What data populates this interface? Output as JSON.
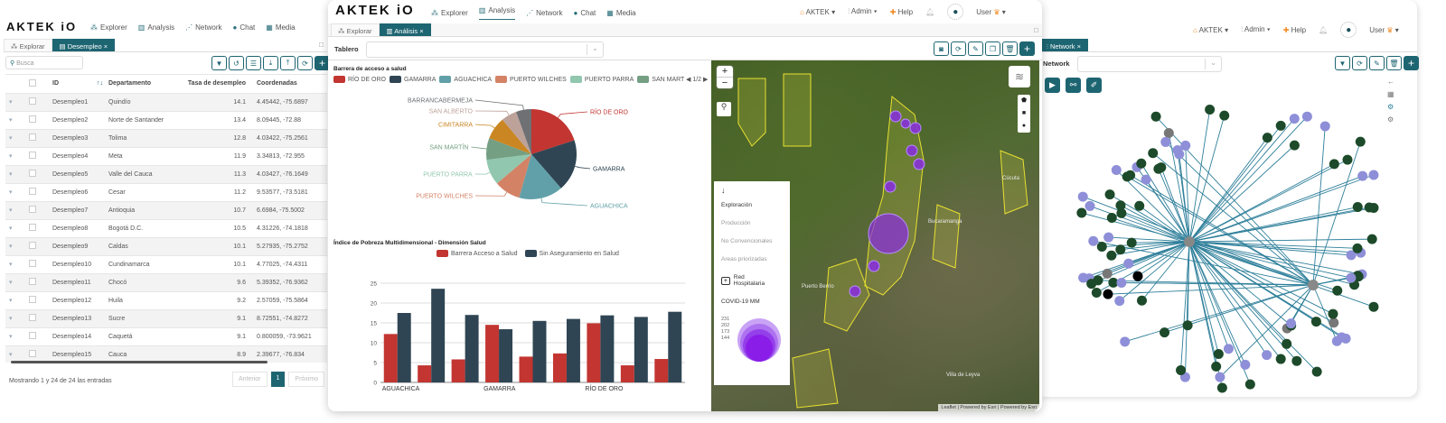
{
  "brand": {
    "logo": "AKTEK iO"
  },
  "nav": [
    "Explorer",
    "Analysis",
    "Network",
    "Chat",
    "Media"
  ],
  "top_menu": {
    "org": "AKTEK",
    "admin": "Admin",
    "help": "Help",
    "user": "User"
  },
  "left": {
    "tabs": [
      "Explorar",
      "Desempleo"
    ],
    "search_placeholder": "Busca",
    "columns": [
      "ID",
      "Departamento",
      "Tasa de desempleo",
      "Coordenadas"
    ],
    "rows": [
      [
        "Desempleo1",
        "Quindío",
        "14.1",
        "4.45442, -75.6897"
      ],
      [
        "Desempleo2",
        "Norte de Santander",
        "13.4",
        "8.09445, -72.88"
      ],
      [
        "Desempleo3",
        "Tolima",
        "12.8",
        "4.03422, -75.2561"
      ],
      [
        "Desempleo4",
        "Meta",
        "11.9",
        "3.34813, -72.955"
      ],
      [
        "Desempleo5",
        "Valle del Cauca",
        "11.3",
        "4.03427, -76.1649"
      ],
      [
        "Desempleo6",
        "Cesar",
        "11.2",
        "9.53577, -73.5181"
      ],
      [
        "Desempleo7",
        "Antioquia",
        "10.7",
        "6.6984, -75.5002"
      ],
      [
        "Desempleo8",
        "Bogotá D.C.",
        "10.5",
        "4.31226, -74.1818"
      ],
      [
        "Desempleo9",
        "Caldas",
        "10.1",
        "5.27935, -75.2752"
      ],
      [
        "Desempleo10",
        "Cundinamarca",
        "10.1",
        "4.77025, -74.4311"
      ],
      [
        "Desempleo11",
        "Chocó",
        "9.6",
        "5.39352, -76.9362"
      ],
      [
        "Desempleo12",
        "Huila",
        "9.2",
        "2.57059, -75.5864"
      ],
      [
        "Desempleo13",
        "Sucre",
        "9.1",
        "8.72551, -74.8272"
      ],
      [
        "Desempleo14",
        "Caquetá",
        "9.1",
        "0.800059, -73.9621"
      ],
      [
        "Desempleo15",
        "Cauca",
        "8.9",
        "2.39677, -76.834"
      ]
    ],
    "footer": "Mostrando 1 y 24 de 24 las entradas",
    "pager": {
      "prev": "Anterior",
      "page": "1",
      "next": "Próximo"
    }
  },
  "middle": {
    "tabs": [
      "Explorar",
      "Análisis"
    ],
    "dashboard_label": "Tablero",
    "map_legend": {
      "items": [
        "Exploración",
        "Producción",
        "No Convencionales",
        "Areas priorizadas",
        "Red Hospitalaria",
        "COVID-19 MM"
      ],
      "scale": [
        "231",
        "202",
        "173",
        "144"
      ]
    },
    "map_attribution": "Leaflet | Powered by Esri | Powered by Esri"
  },
  "right": {
    "tab": "Network",
    "network_label": "Network"
  },
  "chart_data": [
    {
      "type": "pie",
      "title": "Barrera de acceso a salud",
      "legend_page": "1/2",
      "labels": [
        "RÍO DE ORO",
        "GAMARRA",
        "AGUACHICA",
        "PUERTO WILCHES",
        "PUERTO PARRA",
        "SAN MARTÍN",
        "CIMITARRA",
        "SAN ALBERTO",
        "BARRANCABERMEJA"
      ],
      "legend_labels": [
        "RÍO DE ORO",
        "GAMARRA",
        "AGUACHICA",
        "PUERTO WILCHES",
        "PUERTO PARRA",
        "SAN MART"
      ],
      "values": [
        20,
        18.6,
        15.8,
        9.4,
        9.2,
        7.8,
        8.1,
        5.6,
        5.5
      ],
      "colors": [
        "#c23531",
        "#2f4554",
        "#61a0a8",
        "#d48265",
        "#91c7ae",
        "#749f83",
        "#ca8622",
        "#bda29a",
        "#6e7074"
      ]
    },
    {
      "type": "bar",
      "title": "Índice de Pobreza Multidimensional - Dimensión Salud",
      "categories": [
        "AGUACHICA",
        "",
        "",
        "GAMARRA",
        "",
        "",
        "RÍO DE ORO",
        "",
        ""
      ],
      "series": [
        {
          "name": "Barrera Acceso a Salud",
          "color": "#c23531",
          "values": [
            12.2,
            4.3,
            5.8,
            14.5,
            6.5,
            7.3,
            14.9,
            4.3,
            5.9
          ]
        },
        {
          "name": "Sin Aseguramiento en Salud",
          "color": "#2f4554",
          "values": [
            17.5,
            23.6,
            17,
            13.4,
            15.5,
            16,
            16.9,
            16.5,
            17.8
          ]
        }
      ],
      "ylim": [
        0,
        25
      ],
      "yticks": [
        "0",
        "5",
        "10",
        "15",
        "20",
        "25"
      ]
    }
  ],
  "network": {
    "node_colors": [
      "#1d4a2a",
      "#8e8fd8",
      "#777",
      "#000",
      "#c27bd6"
    ],
    "edge_color": "#2e7f9a"
  }
}
